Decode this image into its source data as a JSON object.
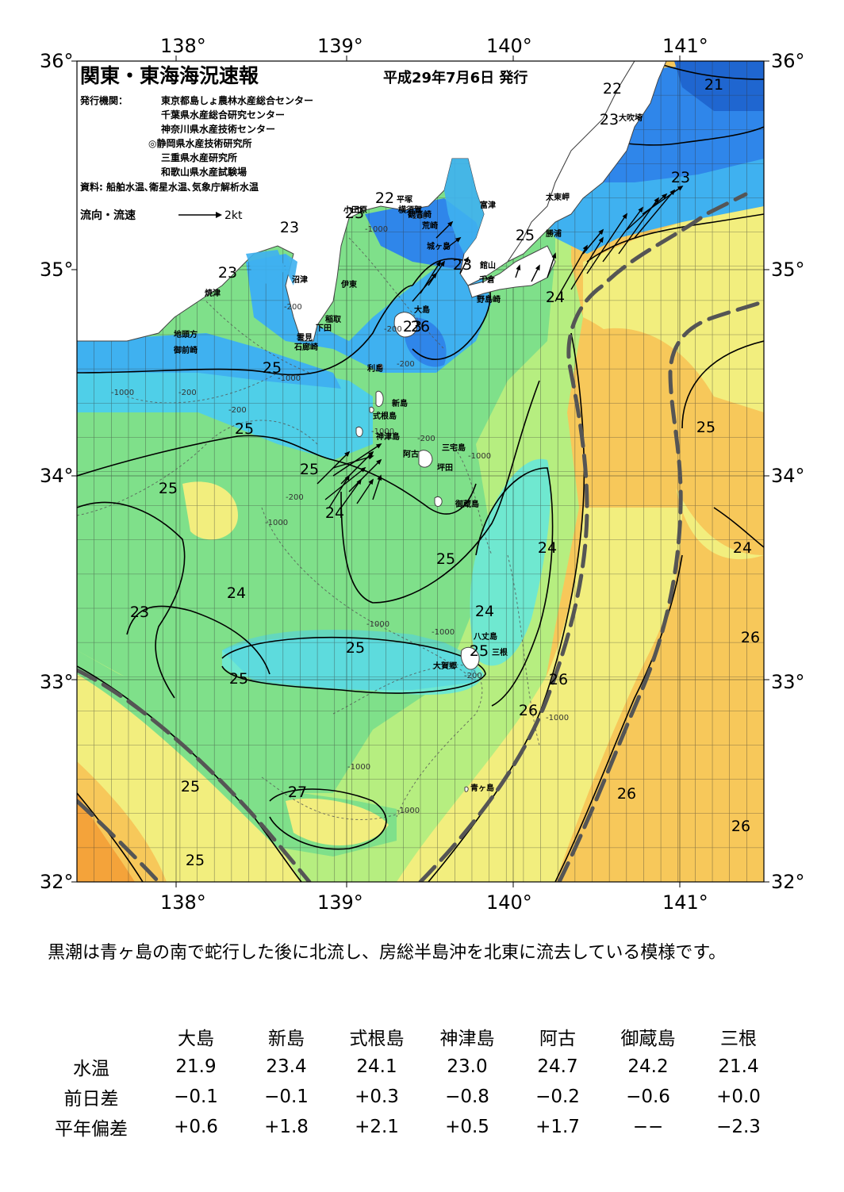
{
  "map": {
    "title": "関東・東海海況速報",
    "date": "平成29年7月6日 発行",
    "publisher_label": "発行機関：",
    "publishers": [
      "東京都島しょ農林水産総合センター",
      "千葉県水産総合研究センター",
      "神奈川県水産技術センター",
      "◎静岡県水産技術研究所",
      "三重県水産研究所",
      "和歌山県水産試験場"
    ],
    "sources": "資料: 船舶水温､衛星水温､気象庁解析水温",
    "current_legend": "流向・流速",
    "current_scale": "2kt",
    "lon_labels": [
      "138°",
      "139°",
      "140°",
      "141°"
    ],
    "lat_labels": [
      "36°",
      "35°",
      "34°",
      "33°",
      "32°"
    ],
    "temp_labels": [
      "21",
      "22",
      "23",
      "23",
      "22",
      "23",
      "25",
      "23",
      "23",
      "23",
      "23",
      "25",
      "24",
      "25",
      "25",
      "25",
      "24",
      "25",
      "25",
      "24",
      "24",
      "24",
      "23",
      "24",
      "26",
      "25",
      "25",
      "25",
      "26",
      "26",
      "26",
      "26",
      "25",
      "27",
      "25",
      "26"
    ],
    "depth_labels": [
      "-1000",
      "-200",
      "-200",
      "-200",
      "-200",
      "-1000",
      "-1000",
      "-200",
      "-200",
      "-1000",
      "-200",
      "-200",
      "-1000",
      "-1000",
      "-1000",
      "-1000",
      "-1000",
      "-1000",
      "-200",
      "-1000"
    ],
    "place_names": [
      "大吹埼",
      "太東岬",
      "勝浦",
      "平塚",
      "横須賀",
      "観音崎",
      "富津",
      "荒崎",
      "城ヶ島",
      "小田原",
      "館山",
      "千倉",
      "野島崎",
      "沼津",
      "焼津",
      "伊東",
      "大島",
      "稲取",
      "下田",
      "雲見",
      "石廊崎",
      "地頭方",
      "御前崎",
      "利島",
      "新島",
      "式根島",
      "神津島",
      "三宅島",
      "阿古",
      "坪田",
      "御蔵島",
      "八丈島",
      "三根",
      "大賀郷",
      "青ヶ島"
    ],
    "colors": {
      "cold": "#2f86ea",
      "cool": "#3fb1f0",
      "mid": "#4fcfe8",
      "aqua": "#6fe8d0",
      "green": "#7fe08a",
      "lightgreen": "#b6ee80",
      "yellow": "#f2ee7e",
      "orange": "#f7c85a",
      "deep_orange": "#f4a33a",
      "land": "#ffffff",
      "kuroshio_axis": "#555555"
    }
  },
  "summary": "黒潮は青ヶ島の南で蛇行した後に北流し、房総半島沖を北東に流去している模様です。",
  "table": {
    "stations": [
      "大島",
      "新島",
      "式根島",
      "神津島",
      "阿古",
      "御蔵島",
      "三根"
    ],
    "rows": [
      {
        "label": "水温",
        "values": [
          "21.9",
          "23.4",
          "24.1",
          "23.0",
          "24.7",
          "24.2",
          "21.4"
        ]
      },
      {
        "label": "前日差",
        "values": [
          "−0.1",
          "−0.1",
          "+0.3",
          "−0.8",
          "−0.2",
          "−0.6",
          "+0.0"
        ]
      },
      {
        "label": "平年偏差",
        "values": [
          "+0.6",
          "+1.8",
          "+2.1",
          "+0.5",
          "+1.7",
          "−−",
          "−2.3"
        ]
      }
    ]
  }
}
